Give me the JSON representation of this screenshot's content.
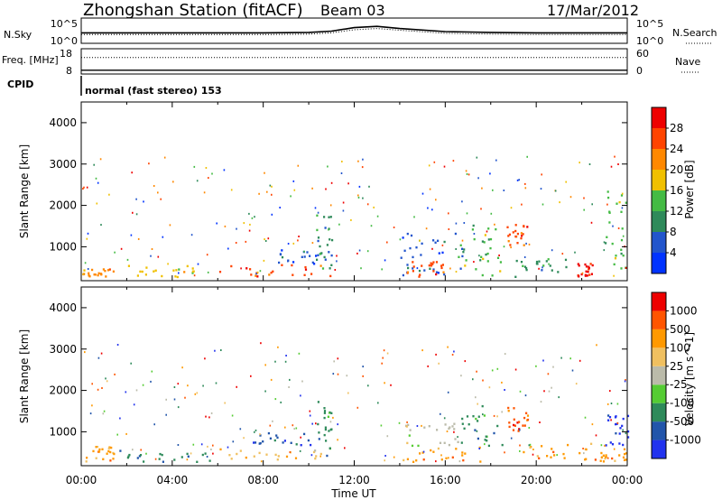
{
  "header": {
    "station": "Zhongshan Station (fitACF)",
    "beam": "Beam 03",
    "date": "17/Mar/2012",
    "cpid_label": "CPID",
    "cpid_value": "normal (fast stereo) 153"
  },
  "chart_data": [
    {
      "type": "line",
      "name": "noise-panel",
      "left_label": "N.Sky",
      "right_label": "N.Search",
      "left_ticks": [
        "10^5",
        "10^0"
      ],
      "right_ticks": [
        "10^5",
        "10^0"
      ],
      "x": [
        0,
        2,
        4,
        6,
        8,
        10,
        11,
        12,
        13,
        14,
        16,
        18,
        20,
        22,
        24
      ],
      "series": [
        {
          "style": "solid",
          "values": [
            2.0,
            2.0,
            2.0,
            2.0,
            2.0,
            2.1,
            2.4,
            3.2,
            3.5,
            3.0,
            2.3,
            2.1,
            2.0,
            2.0,
            2.0
          ]
        },
        {
          "style": "dotted",
          "values": [
            1.6,
            1.6,
            1.6,
            1.6,
            1.6,
            1.7,
            2.0,
            2.7,
            3.0,
            2.6,
            1.9,
            1.7,
            1.6,
            1.6,
            1.6
          ]
        }
      ]
    },
    {
      "type": "line",
      "name": "frequency-panel",
      "left_label": "Freq. [MHz]",
      "right_label": "Nave",
      "left_ticks": [
        "18",
        "8"
      ],
      "right_ticks": [
        "60",
        "0"
      ],
      "x": [
        0,
        24
      ],
      "series": [
        {
          "style": "solid",
          "values": [
            9.5,
            9.5
          ]
        },
        {
          "style": "dotted",
          "values": [
            14.5,
            14.5
          ]
        }
      ]
    },
    {
      "type": "heatmap",
      "name": "power",
      "ylabel": "Slant Range [km]",
      "xlim": [
        0,
        24
      ],
      "ylim": [
        180,
        4500
      ],
      "yticks": [
        1000,
        2000,
        3000,
        4000
      ],
      "colorbar": {
        "label": "Power [dB]",
        "tick_labels": [
          "4",
          "8",
          "12",
          "16",
          "20",
          "24",
          "28"
        ],
        "colors": [
          "#0033ff",
          "#2255cc",
          "#2e8a5a",
          "#44bb44",
          "#f0c000",
          "#ff8800",
          "#ff4400",
          "#ee0000"
        ]
      },
      "regions": [
        {
          "t": [
            0.0,
            1.4
          ],
          "r": [
            250,
            450
          ],
          "c": 5
        },
        {
          "t": [
            1.6,
            5.8
          ],
          "r": [
            250,
            520
          ],
          "c": 4
        },
        {
          "t": [
            6.0,
            11.0
          ],
          "r": [
            250,
            560
          ],
          "c": 6
        },
        {
          "t": [
            8.5,
            11.0
          ],
          "r": [
            560,
            900
          ],
          "c": 1
        },
        {
          "t": [
            10.3,
            11.0
          ],
          "r": [
            400,
            1800
          ],
          "c": 2
        },
        {
          "t": [
            14.0,
            16.8
          ],
          "r": [
            250,
            1300
          ],
          "c": 1
        },
        {
          "t": [
            14.3,
            16.0
          ],
          "r": [
            250,
            650
          ],
          "c": 6
        },
        {
          "t": [
            16.5,
            18.5
          ],
          "r": [
            250,
            1500
          ],
          "c": 3
        },
        {
          "t": [
            18.7,
            19.6
          ],
          "r": [
            1000,
            1600
          ],
          "c": 6
        },
        {
          "t": [
            19.0,
            21.5
          ],
          "r": [
            250,
            700
          ],
          "c": 2
        },
        {
          "t": [
            21.5,
            22.5
          ],
          "r": [
            250,
            600
          ],
          "c": 7
        },
        {
          "t": [
            23.0,
            24.0
          ],
          "r": [
            300,
            2400
          ],
          "c": 3
        }
      ]
    },
    {
      "type": "heatmap",
      "name": "velocity",
      "ylabel": "Slant Range [km]",
      "xlabel": "Time UT",
      "xlim": [
        0,
        24
      ],
      "ylim": [
        180,
        4500
      ],
      "yticks": [
        1000,
        2000,
        3000,
        4000
      ],
      "xticks": [
        "00:00",
        "04:00",
        "08:00",
        "12:00",
        "16:00",
        "20:00",
        "00:00"
      ],
      "colorbar": {
        "label": "Velocity [m s^-1]",
        "tick_labels": [
          "1000",
          "500",
          "100",
          "25",
          "-25",
          "-100",
          "-500",
          "-1000"
        ],
        "colors": [
          "#2233ee",
          "#2255aa",
          "#2e8a5a",
          "#55cc33",
          "#bbbbaa",
          "#f0c060",
          "#ff9900",
          "#ff5500",
          "#ee0000"
        ]
      },
      "regions": [
        {
          "t": [
            0.0,
            1.4
          ],
          "r": [
            250,
            700
          ],
          "c": 6
        },
        {
          "t": [
            1.6,
            5.8
          ],
          "r": [
            250,
            520
          ],
          "c": 2
        },
        {
          "t": [
            6.0,
            11.0
          ],
          "r": [
            250,
            560
          ],
          "c": 5
        },
        {
          "t": [
            7.5,
            10.5
          ],
          "r": [
            560,
            950
          ],
          "c": 1
        },
        {
          "t": [
            10.3,
            11.0
          ],
          "r": [
            400,
            1800
          ],
          "c": 2
        },
        {
          "t": [
            14.0,
            16.8
          ],
          "r": [
            600,
            1300
          ],
          "c": 4
        },
        {
          "t": [
            14.0,
            18.0
          ],
          "r": [
            250,
            600
          ],
          "c": 6
        },
        {
          "t": [
            16.5,
            18.5
          ],
          "r": [
            600,
            1600
          ],
          "c": 2
        },
        {
          "t": [
            18.7,
            19.6
          ],
          "r": [
            1000,
            1600
          ],
          "c": 7
        },
        {
          "t": [
            19.0,
            22.5
          ],
          "r": [
            250,
            700
          ],
          "c": 6
        },
        {
          "t": [
            23.0,
            24.0
          ],
          "r": [
            600,
            1400
          ],
          "c": 0
        },
        {
          "t": [
            22.5,
            24.0
          ],
          "r": [
            250,
            600
          ],
          "c": 6
        }
      ]
    }
  ]
}
